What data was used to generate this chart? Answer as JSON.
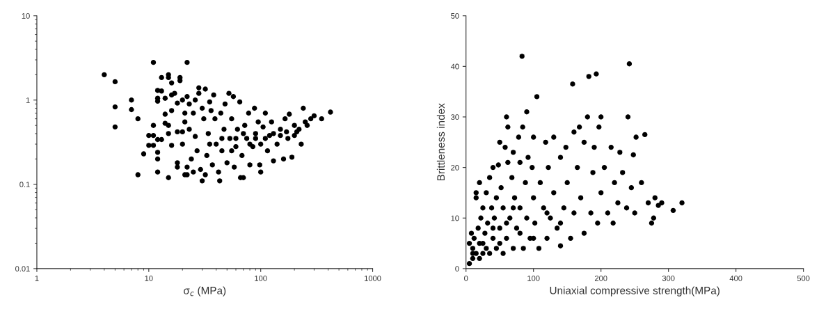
{
  "chart_data": [
    {
      "type": "scatter",
      "xlabel": "σ$_{c}$ (MPa)",
      "log": "xy",
      "xlim": [
        1,
        1000
      ],
      "ylim": [
        0.01,
        10
      ],
      "xticks": [
        1,
        10,
        100,
        1000
      ],
      "yticks": [
        0.01,
        0.1,
        1,
        10
      ],
      "marker": "circle",
      "grid": false,
      "series": [
        {
          "color": "#000000",
          "x": [
            4,
            5,
            5,
            5,
            7,
            7,
            8,
            8,
            9,
            10,
            10,
            11,
            11,
            11,
            11,
            12,
            12,
            12,
            12,
            12,
            12,
            12,
            13,
            13,
            13,
            14,
            14,
            14,
            15,
            15,
            15,
            15,
            15,
            16,
            16,
            16,
            16,
            17,
            18,
            18,
            18,
            18,
            19,
            19,
            20,
            20,
            20,
            21,
            21,
            21,
            22,
            22,
            22,
            22,
            23,
            23,
            24,
            25,
            25,
            26,
            26,
            27,
            28,
            28,
            29,
            30,
            30,
            31,
            32,
            32,
            33,
            34,
            35,
            36,
            37,
            38,
            39,
            40,
            42,
            43,
            44,
            45,
            47,
            48,
            50,
            52,
            53,
            55,
            57,
            58,
            60,
            62,
            65,
            66,
            68,
            70,
            72,
            75,
            78,
            80,
            85,
            88,
            90,
            95,
            98,
            100,
            100,
            105,
            110,
            115,
            120,
            125,
            130,
            140,
            150,
            160,
            165,
            175,
            180,
            190,
            200,
            210,
            230,
            240,
            250,
            280,
            300,
            350,
            420,
            60,
            70,
            80,
            90,
            110,
            130,
            150,
            170,
            45,
            55,
            35,
            200,
            220,
            260
          ],
          "values": [
            2.0,
            1.65,
            0.83,
            0.48,
            1.0,
            0.77,
            0.6,
            0.13,
            0.23,
            0.38,
            0.29,
            2.8,
            0.5,
            0.38,
            0.29,
            1.3,
            1.05,
            0.97,
            0.34,
            0.24,
            0.2,
            0.14,
            1.85,
            1.28,
            0.34,
            1.05,
            0.68,
            0.53,
            1.85,
            2.0,
            0.5,
            0.4,
            0.12,
            1.6,
            1.15,
            0.75,
            0.29,
            1.2,
            0.92,
            0.42,
            0.18,
            0.16,
            1.85,
            1.7,
            0.42,
            0.3,
            1.0,
            0.7,
            0.55,
            0.13,
            2.8,
            0.16,
            0.13,
            1.1,
            0.9,
            0.45,
            0.2,
            0.14,
            0.7,
            1.0,
            0.37,
            0.25,
            1.2,
            1.4,
            0.15,
            0.8,
            0.11,
            0.6,
            1.35,
            0.13,
            0.22,
            0.4,
            0.95,
            0.75,
            0.17,
            1.15,
            0.6,
            0.3,
            0.14,
            0.11,
            0.7,
            0.25,
            0.45,
            0.9,
            0.18,
            1.2,
            0.35,
            0.6,
            1.1,
            0.16,
            0.28,
            0.45,
            0.95,
            0.12,
            0.22,
            0.12,
            0.5,
            0.35,
            0.7,
            0.17,
            0.28,
            0.8,
            0.4,
            0.55,
            0.17,
            0.14,
            0.3,
            0.48,
            0.7,
            0.25,
            0.38,
            0.55,
            0.19,
            0.3,
            0.45,
            0.2,
            0.6,
            0.35,
            0.68,
            0.21,
            0.5,
            0.42,
            0.3,
            0.8,
            0.55,
            0.6,
            0.65,
            0.6,
            0.72,
            0.35,
            0.4,
            0.3,
            0.35,
            0.35,
            0.4,
            0.38,
            0.42,
            0.35,
            0.25,
            0.3,
            0.38,
            0.45,
            0.5
          ]
        }
      ]
    },
    {
      "type": "scatter",
      "xlabel": "Uniaxial compressive strength(MPa)",
      "ylabel": "Brittleness index",
      "xlim": [
        0,
        500
      ],
      "ylim": [
        0,
        50
      ],
      "xticks": [
        0,
        100,
        200,
        300,
        400,
        500
      ],
      "yticks": [
        0,
        10,
        20,
        30,
        40,
        50
      ],
      "marker": "circle",
      "grid": false,
      "series": [
        {
          "color": "#000000",
          "x": [
            5,
            5,
            8,
            10,
            10,
            12,
            15,
            15,
            15,
            18,
            20,
            20,
            20,
            22,
            25,
            25,
            28,
            30,
            30,
            32,
            35,
            35,
            38,
            40,
            40,
            42,
            45,
            45,
            48,
            50,
            50,
            52,
            55,
            55,
            58,
            60,
            60,
            62,
            62,
            65,
            68,
            70,
            70,
            72,
            75,
            78,
            80,
            80,
            83,
            84,
            85,
            88,
            90,
            90,
            92,
            95,
            98,
            100,
            100,
            102,
            105,
            108,
            110,
            115,
            118,
            120,
            122,
            125,
            130,
            130,
            135,
            140,
            140,
            145,
            148,
            150,
            155,
            158,
            160,
            160,
            165,
            168,
            170,
            175,
            175,
            180,
            182,
            185,
            188,
            190,
            193,
            195,
            197,
            200,
            200,
            205,
            210,
            215,
            218,
            220,
            225,
            228,
            232,
            238,
            240,
            242,
            245,
            248,
            250,
            252,
            260,
            265,
            270,
            275,
            278,
            280,
            285,
            290,
            307,
            320,
            10,
            25,
            40,
            60,
            80,
            100,
            120,
            140,
            50,
            70
          ],
          "values": [
            1,
            5,
            7,
            2,
            4,
            6,
            3,
            15,
            14,
            8,
            2,
            17,
            5,
            10,
            3,
            12,
            7,
            4,
            15,
            9,
            3,
            18,
            12,
            20,
            6,
            10,
            4,
            14,
            20.5,
            25,
            8,
            16,
            3,
            12,
            24,
            30,
            6,
            28,
            21,
            10,
            18,
            23,
            4,
            14,
            8,
            26,
            21,
            12,
            42,
            28,
            4,
            17,
            31,
            10,
            22,
            6,
            20,
            14,
            26,
            9,
            34,
            4,
            17,
            12,
            25,
            6,
            20,
            10,
            26,
            15,
            8,
            4.5,
            22,
            12,
            24,
            17,
            6,
            36.5,
            27,
            11,
            20,
            28,
            14,
            7,
            25,
            30,
            38,
            11,
            19,
            24,
            38.5,
            9,
            28,
            30,
            15,
            20,
            11,
            24,
            9,
            17,
            13,
            23,
            19,
            12,
            30,
            40.5,
            16,
            22.5,
            11,
            26,
            17,
            26.5,
            13,
            9,
            10,
            14,
            12.5,
            13,
            11.5,
            13,
            3,
            5,
            8,
            9,
            7,
            6,
            11,
            9,
            5,
            12
          ]
        }
      ]
    }
  ]
}
